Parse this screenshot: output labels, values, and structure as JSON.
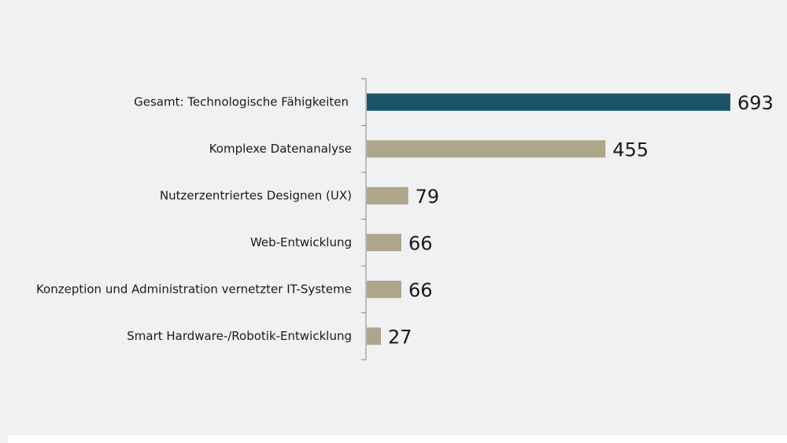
{
  "chart_data": {
    "type": "bar",
    "orientation": "horizontal",
    "categories": [
      "Gesamt: Technologische Fähigkeiten",
      "Komplexe Datenanalyse",
      "Nutzerzentriertes Designen (UX)",
      "Web-Entwicklung",
      "Konzeption und Administration vernetzter IT-Systeme",
      "Smart Hardware-/Robotik-Entwicklung"
    ],
    "values": [
      693,
      455,
      79,
      66,
      66,
      27
    ],
    "colors": [
      "#1b5468",
      "#aea58a",
      "#aea58a",
      "#aea58a",
      "#aea58a",
      "#aea58a"
    ]
  }
}
